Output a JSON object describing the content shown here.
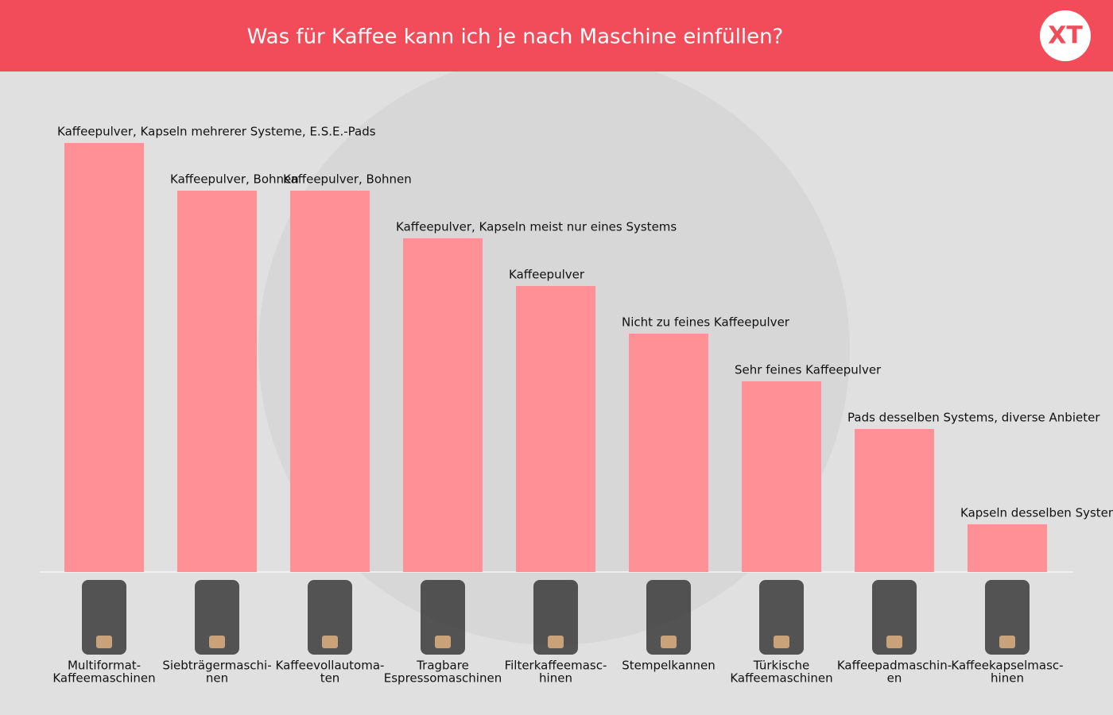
{
  "chart_data": {
    "type": "bar",
    "title": "Was für Kaffee kann ich je nach Maschine einfüllen?",
    "logo": "XT",
    "categories": [
      [
        "Multiformat-",
        "Kaffeemaschinen"
      ],
      [
        "Siebträgermaschi-",
        "nen"
      ],
      [
        "Kaffeevollautoma-",
        "ten"
      ],
      [
        "Tragbare",
        "Espressomaschinen"
      ],
      [
        "Filterkaffeemasc-",
        "hinen"
      ],
      [
        "Stempelkannen"
      ],
      [
        "Türkische",
        "Kaffeemaschinen"
      ],
      [
        "Kaffeepadmaschin-",
        "en"
      ],
      [
        "Kaffeekapselmasc-",
        "hinen"
      ]
    ],
    "values": [
      9,
      8,
      8,
      7,
      6,
      5,
      4,
      3,
      1
    ],
    "bar_labels": [
      "Kaffeepulver, Kapseln mehrerer Systeme, E.S.E.-Pads",
      "Kaffeepulver, Bohnen",
      "Kaffeepulver, Bohnen",
      "Kaffeepulver, Kapseln meist nur eines Systems",
      "Kaffeepulver",
      "Nicht zu feines Kaffeepulver",
      "Sehr feines Kaffeepulver",
      "Pads desselben Systems, diverse Anbieter",
      "Kapseln desselben Systems"
    ],
    "color": "#ff9196",
    "ylim": [
      0,
      9
    ]
  }
}
